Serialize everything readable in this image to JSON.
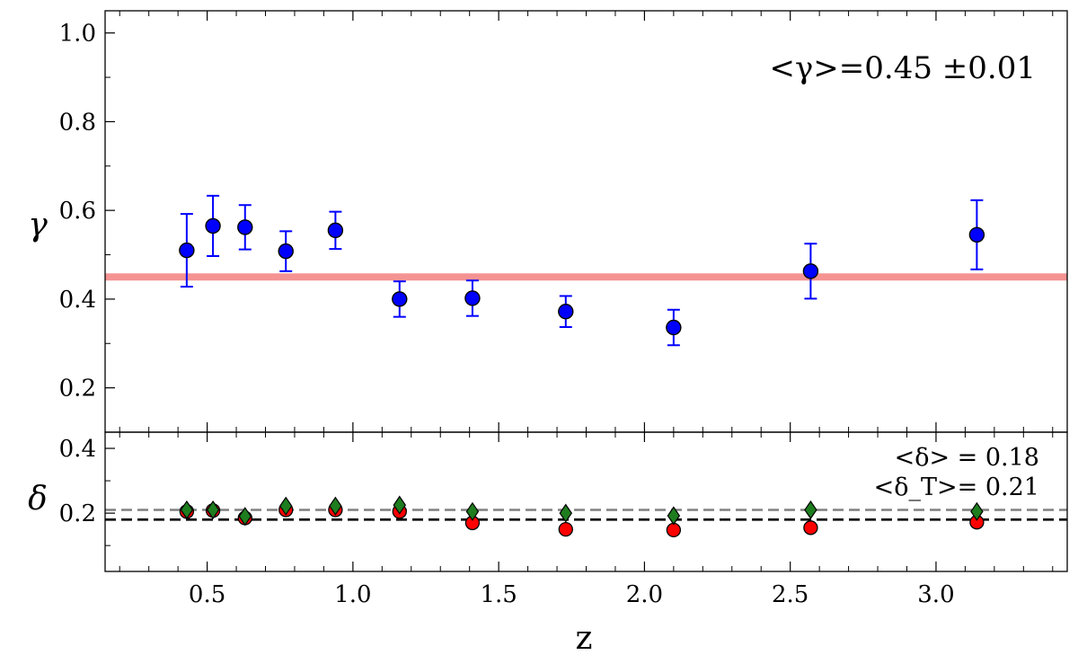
{
  "chart_data": [
    {
      "type": "scatter",
      "panel": "top",
      "title": "",
      "xlabel": "",
      "ylabel": "γ",
      "xlim": [
        0.15,
        3.45
      ],
      "ylim": [
        0.1,
        1.05
      ],
      "yticks": [
        0.2,
        0.4,
        0.6,
        0.8,
        1.0
      ],
      "ytick_labels": [
        "0.2",
        "0.4",
        "0.6",
        "0.8",
        "1.0"
      ],
      "annotation": "<γ>=0.45 ±0.01",
      "reference_line": {
        "y": 0.45,
        "color": "#f59393"
      },
      "series": [
        {
          "marker": "circle",
          "color": "#0000ff",
          "error_bar_color": "#0000ff",
          "x": [
            0.43,
            0.52,
            0.63,
            0.77,
            0.94,
            1.16,
            1.41,
            1.73,
            2.1,
            2.57,
            3.14
          ],
          "y": [
            0.51,
            0.565,
            0.562,
            0.508,
            0.555,
            0.4,
            0.402,
            0.372,
            0.336,
            0.463,
            0.545
          ],
          "yerr": [
            0.082,
            0.068,
            0.05,
            0.045,
            0.042,
            0.04,
            0.04,
            0.035,
            0.04,
            0.062,
            0.078
          ]
        }
      ]
    },
    {
      "type": "scatter",
      "panel": "bottom",
      "title": "",
      "xlabel": "z",
      "ylabel": "δ",
      "xlim": [
        0.15,
        3.45
      ],
      "ylim": [
        0.02,
        0.45
      ],
      "xticks": [
        0.5,
        1.0,
        1.5,
        2.0,
        2.5,
        3.0
      ],
      "xtick_labels": [
        "0.5",
        "1.0",
        "1.5",
        "2.0",
        "2.5",
        "3.0"
      ],
      "yticks": [
        0.2,
        0.4
      ],
      "ytick_labels": [
        "0.2",
        "0.4"
      ],
      "annotations": [
        "<δ> = 0.18",
        "<δ_T>= 0.21"
      ],
      "reference_lines": [
        {
          "y": 0.18,
          "color": "#000000",
          "style": "dashed"
        },
        {
          "y": 0.21,
          "color": "#808080",
          "style": "dashed"
        }
      ],
      "series": [
        {
          "marker": "circle",
          "color": "#ff0000",
          "x": [
            0.43,
            0.52,
            0.63,
            0.77,
            0.94,
            1.16,
            1.41,
            1.73,
            2.1,
            2.57,
            3.14
          ],
          "y": [
            0.205,
            0.208,
            0.185,
            0.21,
            0.21,
            0.205,
            0.17,
            0.15,
            0.148,
            0.155,
            0.172
          ]
        },
        {
          "marker": "diamond",
          "color": "#1e7d1e",
          "x": [
            0.43,
            0.52,
            0.63,
            0.77,
            0.94,
            1.16,
            1.41,
            1.73,
            2.1,
            2.57,
            3.14
          ],
          "y": [
            0.21,
            0.21,
            0.19,
            0.222,
            0.222,
            0.225,
            0.205,
            0.2,
            0.192,
            0.21,
            0.205
          ]
        }
      ]
    }
  ]
}
